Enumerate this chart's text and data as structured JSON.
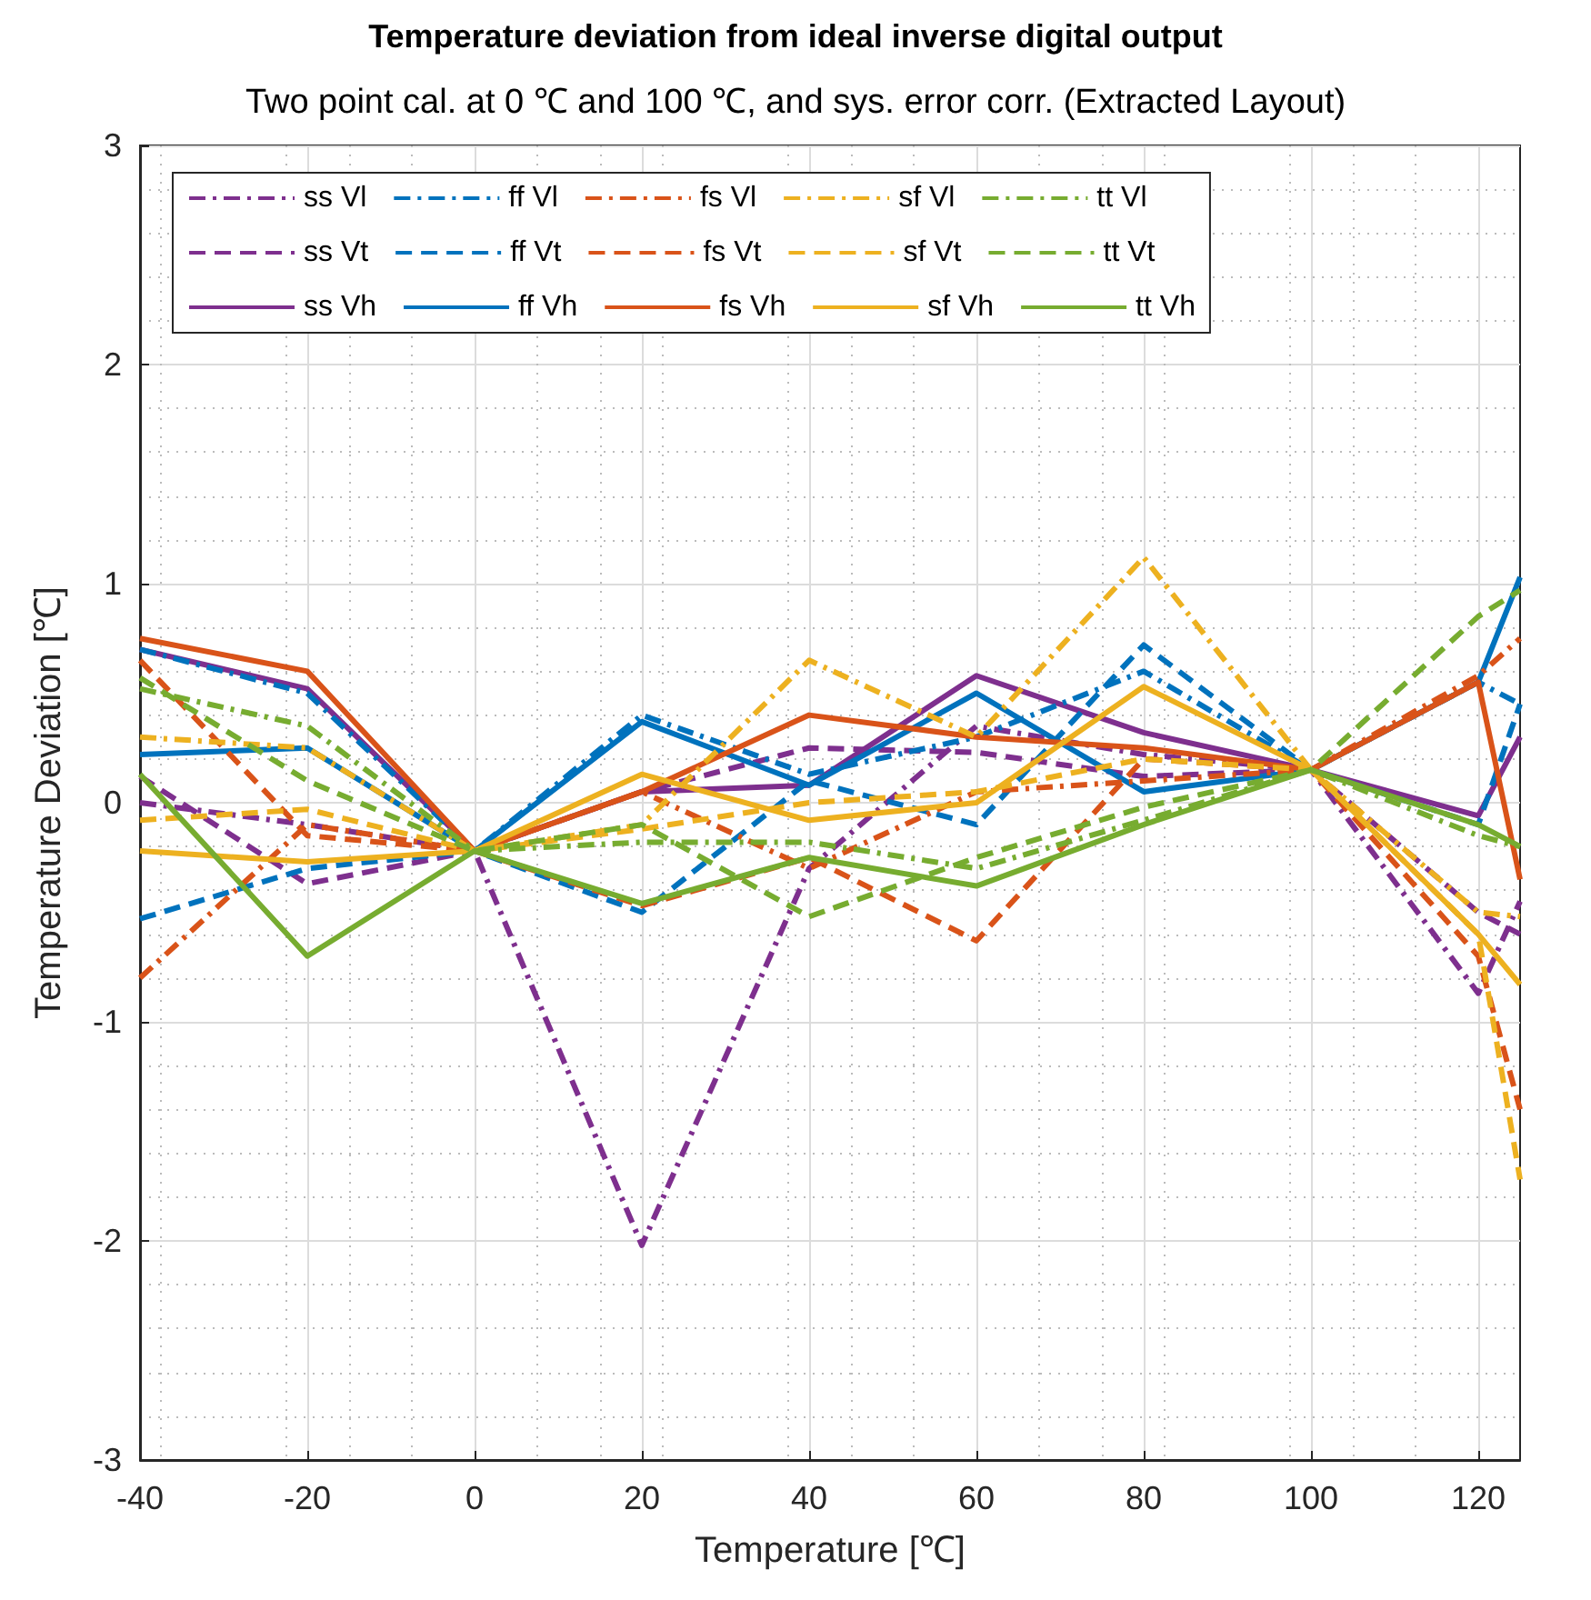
{
  "chart_data": {
    "type": "line",
    "title": "Temperature deviation from ideal inverse digital output",
    "subtitle": "Two point cal. at 0 ℃ and 100 ℃, and sys. error corr. (Extracted Layout)",
    "xlabel": "Temperature [℃]",
    "ylabel": "Temperature Deviation [℃]",
    "x": [
      -40,
      -20,
      0,
      20,
      40,
      60,
      80,
      100,
      120,
      125
    ],
    "xlim": [
      -40,
      125
    ],
    "xticks": [
      -40,
      -20,
      0,
      20,
      40,
      60,
      80,
      100,
      120
    ],
    "ylim": [
      -3,
      3
    ],
    "yticks": [
      -3,
      -2,
      -1,
      0,
      1,
      2,
      3
    ],
    "grid": true,
    "legend": "top left",
    "marker": "none",
    "series": [
      {
        "name": "ss Vl",
        "color": "#7e2f8e",
        "line_style": "dashdot",
        "values": [
          0.0,
          -0.1,
          -0.22,
          -2.02,
          -0.3,
          0.35,
          0.22,
          0.15,
          -0.87,
          -0.45
        ]
      },
      {
        "name": "ss Vt",
        "color": "#7e2f8e",
        "line_style": "dashed",
        "values": [
          0.12,
          -0.37,
          -0.22,
          0.05,
          0.25,
          0.23,
          0.12,
          0.15,
          -0.5,
          -0.6
        ]
      },
      {
        "name": "ss Vh",
        "color": "#7e2f8e",
        "line_style": "solid",
        "values": [
          0.7,
          0.52,
          -0.22,
          0.05,
          0.08,
          0.58,
          0.32,
          0.15,
          -0.06,
          0.3
        ]
      },
      {
        "name": "ff Vl",
        "color": "#0072bd",
        "line_style": "dashdot",
        "values": [
          0.7,
          0.5,
          -0.22,
          0.4,
          0.13,
          0.3,
          0.6,
          0.15,
          0.55,
          0.45
        ]
      },
      {
        "name": "ff Vt",
        "color": "#0072bd",
        "line_style": "dashed",
        "values": [
          -0.53,
          -0.3,
          -0.22,
          -0.5,
          0.1,
          -0.1,
          0.72,
          0.15,
          -0.1,
          0.45
        ]
      },
      {
        "name": "ff Vh",
        "color": "#0072bd",
        "line_style": "solid",
        "values": [
          0.22,
          0.25,
          -0.22,
          0.37,
          0.08,
          0.5,
          0.05,
          0.15,
          0.55,
          1.03
        ]
      },
      {
        "name": "fs Vl",
        "color": "#d95319",
        "line_style": "dashdot",
        "values": [
          -0.8,
          -0.1,
          -0.22,
          0.05,
          -0.3,
          0.05,
          0.1,
          0.15,
          0.58,
          0.75
        ]
      },
      {
        "name": "fs Vt",
        "color": "#d95319",
        "line_style": "dashed",
        "values": [
          0.65,
          -0.15,
          -0.22,
          -0.47,
          -0.25,
          -0.63,
          0.2,
          0.15,
          -0.7,
          -1.4
        ]
      },
      {
        "name": "fs Vh",
        "color": "#d95319",
        "line_style": "solid",
        "values": [
          0.75,
          0.6,
          -0.22,
          0.05,
          0.4,
          0.3,
          0.25,
          0.15,
          0.55,
          -0.35
        ]
      },
      {
        "name": "sf Vl",
        "color": "#edb120",
        "line_style": "dashdot",
        "values": [
          0.3,
          0.25,
          -0.22,
          -0.1,
          0.65,
          0.3,
          1.12,
          0.15,
          -0.5,
          -0.52
        ]
      },
      {
        "name": "sf Vt",
        "color": "#edb120",
        "line_style": "dashed",
        "values": [
          -0.08,
          -0.03,
          -0.22,
          -0.12,
          0.0,
          0.05,
          0.2,
          0.15,
          -0.6,
          -1.72
        ]
      },
      {
        "name": "sf Vh",
        "color": "#edb120",
        "line_style": "solid",
        "values": [
          -0.22,
          -0.27,
          -0.22,
          0.13,
          -0.08,
          0.0,
          0.53,
          0.15,
          -0.6,
          -0.83
        ]
      },
      {
        "name": "tt Vl",
        "color": "#77ac30",
        "line_style": "dashdot",
        "values": [
          0.52,
          0.35,
          -0.22,
          -0.18,
          -0.18,
          -0.3,
          -0.08,
          0.15,
          -0.15,
          -0.2
        ]
      },
      {
        "name": "tt Vt",
        "color": "#77ac30",
        "line_style": "dashed",
        "values": [
          0.57,
          0.1,
          -0.22,
          -0.1,
          -0.52,
          -0.25,
          -0.02,
          0.15,
          0.85,
          0.97
        ]
      },
      {
        "name": "tt Vh",
        "color": "#77ac30",
        "line_style": "solid",
        "values": [
          0.13,
          -0.7,
          -0.22,
          -0.46,
          -0.25,
          -0.38,
          -0.1,
          0.15,
          -0.1,
          -0.2
        ]
      }
    ]
  }
}
